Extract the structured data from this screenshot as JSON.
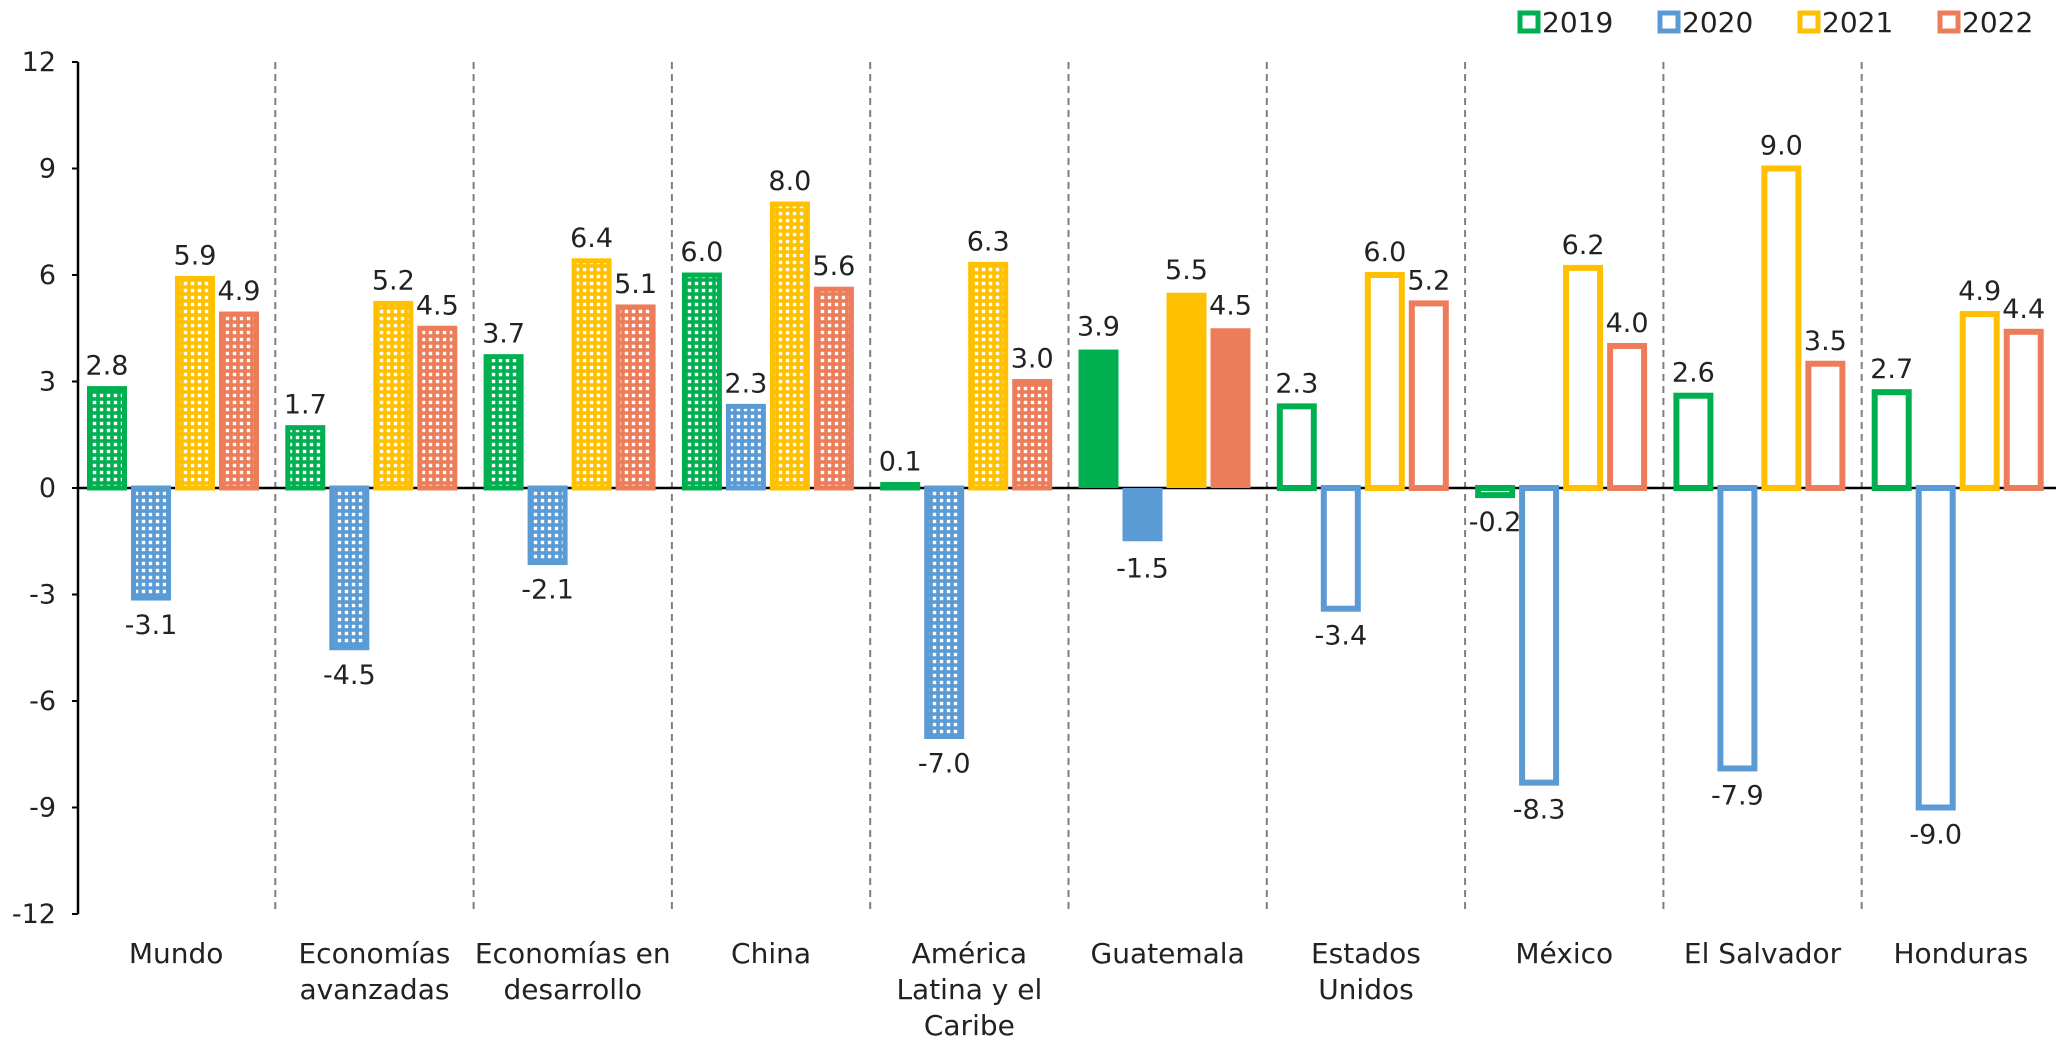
{
  "chart_data": {
    "type": "bar",
    "title": "",
    "xlabel": "",
    "ylabel": "",
    "ylim": [
      -12,
      12
    ],
    "yticks": [
      12,
      9,
      6,
      3,
      0,
      -3,
      -6,
      -9,
      -12
    ],
    "legend_position": "top-right",
    "categories": [
      [
        "Mundo"
      ],
      [
        "Economías",
        "avanzadas"
      ],
      [
        "Economías en",
        "desarrollo"
      ],
      [
        "China"
      ],
      [
        "América",
        "Latina y el",
        "Caribe"
      ],
      [
        "Guatemala"
      ],
      [
        "Estados",
        "Unidos"
      ],
      [
        "México"
      ],
      [
        "El Salvador"
      ],
      [
        "Honduras"
      ]
    ],
    "series": [
      {
        "name": "2019",
        "color": "#00b050",
        "values": [
          2.8,
          1.7,
          3.7,
          6.0,
          0.1,
          3.9,
          2.3,
          -0.2,
          2.6,
          2.7
        ]
      },
      {
        "name": "2020",
        "color": "#5b9bd5",
        "values": [
          -3.1,
          -4.5,
          -2.1,
          2.3,
          -7.0,
          -1.5,
          -3.4,
          -8.3,
          -7.9,
          -9.0
        ]
      },
      {
        "name": "2021",
        "color": "#ffc000",
        "values": [
          5.9,
          5.2,
          6.4,
          8.0,
          6.3,
          5.5,
          6.0,
          6.2,
          9.0,
          4.9
        ]
      },
      {
        "name": "2022",
        "color": "#ed7d5a",
        "values": [
          4.9,
          4.5,
          5.1,
          5.6,
          3.0,
          4.5,
          5.2,
          4.0,
          3.5,
          4.4
        ]
      }
    ],
    "fill_styles": [
      "grid",
      "grid",
      "grid",
      "grid",
      "grid",
      "solid",
      "outline",
      "outline",
      "outline",
      "outline"
    ],
    "data_labels": [
      [
        "2.8",
        "-3.1",
        "5.9",
        "4.9"
      ],
      [
        "1.7",
        "-4.5",
        "5.2",
        "4.5"
      ],
      [
        "3.7",
        "-2.1",
        "6.4",
        "5.1"
      ],
      [
        "6.0",
        "2.3",
        "8.0",
        "5.6"
      ],
      [
        "0.1",
        "-7.0",
        "6.3",
        "3.0"
      ],
      [
        "3.9",
        "-1.5",
        "5.5",
        "4.5"
      ],
      [
        "2.3",
        "-3.4",
        "6.0",
        "5.2"
      ],
      [
        "-0.2",
        "-8.3",
        "6.2",
        "4.0"
      ],
      [
        "2.6",
        "-7.9",
        "9.0",
        "3.5"
      ],
      [
        "2.7",
        "-9.0",
        "4.9",
        "4.4"
      ]
    ]
  }
}
